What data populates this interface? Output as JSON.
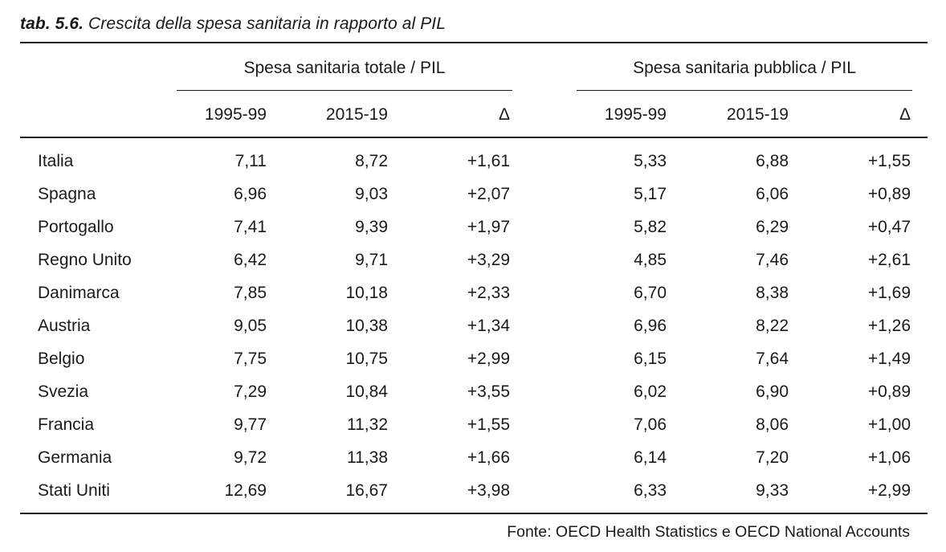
{
  "caption": {
    "label": "tab. 5.6.",
    "title": "Crescita della spesa sanitaria in rapporto al PIL"
  },
  "groups": [
    {
      "title": "Spesa sanitaria totale / PIL"
    },
    {
      "title": "Spesa sanitaria pubblica / PIL"
    }
  ],
  "columns": [
    "1995-99",
    "2015-19",
    "Δ",
    "1995-99",
    "2015-19",
    "Δ"
  ],
  "rows": [
    {
      "name": "Italia",
      "values": [
        "7,11",
        "8,72",
        "+1,61",
        "5,33",
        "6,88",
        "+1,55"
      ]
    },
    {
      "name": "Spagna",
      "values": [
        "6,96",
        "9,03",
        "+2,07",
        "5,17",
        "6,06",
        "+0,89"
      ]
    },
    {
      "name": "Portogallo",
      "values": [
        "7,41",
        "9,39",
        "+1,97",
        "5,82",
        "6,29",
        "+0,47"
      ]
    },
    {
      "name": "Regno Unito",
      "values": [
        "6,42",
        "9,71",
        "+3,29",
        "4,85",
        "7,46",
        "+2,61"
      ]
    },
    {
      "name": "Danimarca",
      "values": [
        "7,85",
        "10,18",
        "+2,33",
        "6,70",
        "8,38",
        "+1,69"
      ]
    },
    {
      "name": "Austria",
      "values": [
        "9,05",
        "10,38",
        "+1,34",
        "6,96",
        "8,22",
        "+1,26"
      ]
    },
    {
      "name": "Belgio",
      "values": [
        "7,75",
        "10,75",
        "+2,99",
        "6,15",
        "7,64",
        "+1,49"
      ]
    },
    {
      "name": "Svezia",
      "values": [
        "7,29",
        "10,84",
        "+3,55",
        "6,02",
        "6,90",
        "+0,89"
      ]
    },
    {
      "name": "Francia",
      "values": [
        "9,77",
        "11,32",
        "+1,55",
        "7,06",
        "8,06",
        "+1,00"
      ]
    },
    {
      "name": "Germania",
      "values": [
        "9,72",
        "11,38",
        "+1,66",
        "6,14",
        "7,20",
        "+1,06"
      ]
    },
    {
      "name": "Stati Uniti",
      "values": [
        "12,69",
        "16,67",
        "+3,98",
        "6,33",
        "9,33",
        "+2,99"
      ]
    }
  ],
  "source": "Fonte: OECD Health Statistics e OECD National Accounts"
}
